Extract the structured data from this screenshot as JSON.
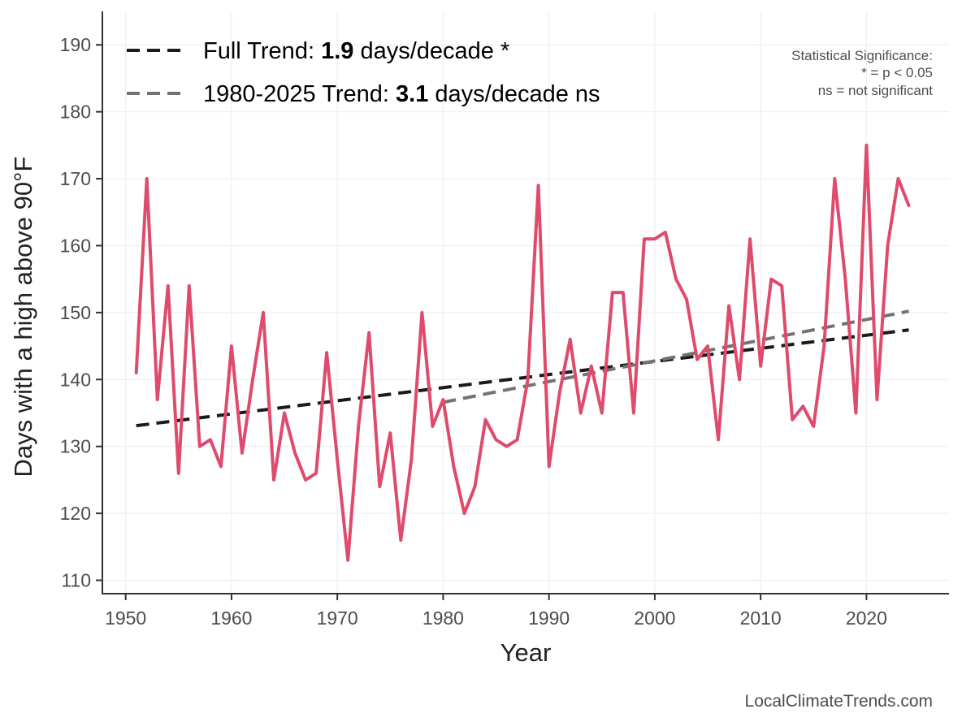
{
  "chart_data": {
    "type": "line",
    "title": "",
    "xlabel": "Year",
    "ylabel": "Days with a high above 90°F",
    "xlim": [
      1947.8,
      2027.8
    ],
    "ylim": [
      108,
      195
    ],
    "x_ticks": [
      1950,
      1960,
      1970,
      1980,
      1990,
      2000,
      2010,
      2020
    ],
    "y_ticks": [
      110,
      120,
      130,
      140,
      150,
      160,
      170,
      180,
      190
    ],
    "grid": true,
    "legend_position": "top-left",
    "series": [
      {
        "color": "#de4b6c",
        "x": [
          1951,
          1952,
          1953,
          1954,
          1955,
          1956,
          1957,
          1958,
          1959,
          1960,
          1961,
          1962,
          1963,
          1964,
          1965,
          1966,
          1967,
          1968,
          1969,
          1970,
          1971,
          1972,
          1973,
          1974,
          1975,
          1976,
          1977,
          1978,
          1979,
          1980,
          1981,
          1982,
          1983,
          1984,
          1985,
          1986,
          1987,
          1988,
          1989,
          1990,
          1991,
          1992,
          1993,
          1994,
          1995,
          1996,
          1997,
          1998,
          1999,
          2000,
          2001,
          2002,
          2003,
          2004,
          2005,
          2006,
          2007,
          2008,
          2009,
          2010,
          2011,
          2012,
          2013,
          2014,
          2015,
          2016,
          2017,
          2018,
          2019,
          2020,
          2021,
          2022,
          2023,
          2024
        ],
        "y": [
          141,
          170,
          137,
          154,
          126,
          154,
          130,
          131,
          127,
          145,
          129,
          140,
          150,
          125,
          135,
          129,
          125,
          126,
          144,
          128,
          113,
          133,
          147,
          124,
          132,
          116,
          128,
          150,
          133,
          137,
          127,
          120,
          124,
          134,
          131,
          130,
          131,
          140,
          169,
          127,
          138,
          146,
          135,
          142,
          135,
          153,
          153,
          135,
          161,
          161,
          162,
          155,
          152,
          143,
          145,
          131,
          151,
          140,
          161,
          142,
          155,
          154,
          134,
          136,
          133,
          145,
          170,
          155,
          135,
          175,
          137,
          160,
          170,
          166
        ]
      }
    ],
    "trends": [
      {
        "name": "full",
        "color": "#1a1a1a",
        "x": [
          1951,
          2024
        ],
        "y": [
          133.1,
          147.4
        ],
        "label_prefix": "Full Trend: ",
        "label_value": "1.9",
        "label_suffix": " days/decade *"
      },
      {
        "name": "recent",
        "color": "#737373",
        "x": [
          1980,
          2024
        ],
        "y": [
          136.6,
          150.2
        ],
        "label_prefix": "1980-2025 Trend: ",
        "label_value": "3.1",
        "label_suffix": " days/decade ns"
      }
    ],
    "annotation_lines": [
      "Statistical Significance:",
      "* = p < 0.05",
      "ns = not significant"
    ],
    "source": "LocalClimateTrends.com"
  }
}
